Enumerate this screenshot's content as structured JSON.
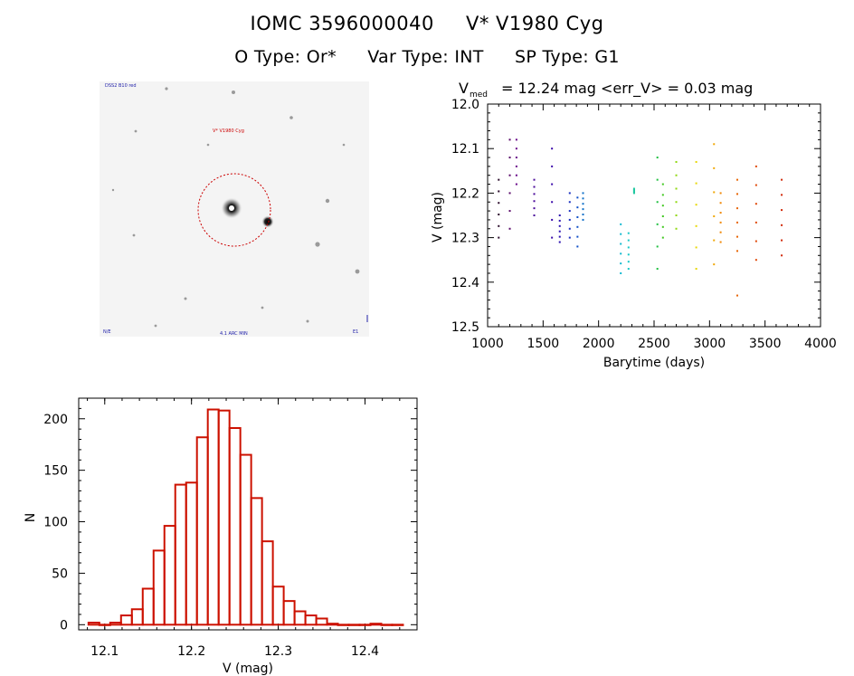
{
  "header": {
    "object_id": "IOMC 3596000040",
    "star_name": "V* V1980 Cyg",
    "o_type": "O Type: Or*",
    "var_type": "Var Type: INT",
    "sp_type": "SP Type: G1"
  },
  "image_panel": {
    "top_left_label": "DSS2 B10 red",
    "target_label": "V* V1980 Cyg",
    "bottom_left_label": "N/E",
    "bottom_center_label": "4.1 ARC MIN",
    "bottom_right_label": "E1"
  },
  "colors": {
    "hist_bar": "#cc1100",
    "circle": "#cc0000",
    "axis": "#000000"
  },
  "chart_data": [
    {
      "id": "light_curve",
      "type": "scatter",
      "title_prefix": "V",
      "title_subscript": "med",
      "title_rest": "= 12.24 mag  <err_V> = 0.03 mag",
      "xlabel": "Barytime (days)",
      "ylabel": "V (mag)",
      "xlim": [
        1000,
        4000
      ],
      "ylim": [
        12.5,
        12.0
      ],
      "xticks": [
        1000,
        1500,
        2000,
        2500,
        3000,
        3500,
        4000
      ],
      "yticks": [
        "12.0",
        "12.1",
        "12.2",
        "12.3",
        "12.4",
        "12.5"
      ],
      "y_inverted": true,
      "points_per_group": 6,
      "groups": [
        {
          "x": 1100,
          "ymin": 12.17,
          "ymax": 12.3,
          "color": "#2a0a2a"
        },
        {
          "x": 1200,
          "ymin": 12.08,
          "ymax": 12.28,
          "color": "#5a0a6a"
        },
        {
          "x": 1260,
          "ymin": 12.08,
          "ymax": 12.18,
          "color": "#6a0a8a"
        },
        {
          "x": 1420,
          "ymin": 12.17,
          "ymax": 12.25,
          "color": "#4a0a9a"
        },
        {
          "x": 1580,
          "ymin": 12.1,
          "ymax": 12.3,
          "color": "#3a0aaa"
        },
        {
          "x": 1650,
          "ymin": 12.25,
          "ymax": 12.31,
          "color": "#2a10b0"
        },
        {
          "x": 1740,
          "ymin": 12.2,
          "ymax": 12.3,
          "color": "#1a30c0"
        },
        {
          "x": 1810,
          "ymin": 12.21,
          "ymax": 12.32,
          "color": "#1050c8"
        },
        {
          "x": 1860,
          "ymin": 12.2,
          "ymax": 12.26,
          "color": "#1070c8"
        },
        {
          "x": 2200,
          "ymin": 12.27,
          "ymax": 12.38,
          "color": "#10b8d0"
        },
        {
          "x": 2270,
          "ymin": 12.29,
          "ymax": 12.37,
          "color": "#18c8c8"
        },
        {
          "x": 2320,
          "ymin": 12.19,
          "ymax": 12.2,
          "color": "#20c8a0"
        },
        {
          "x": 2530,
          "ymin": 12.12,
          "ymax": 12.37,
          "color": "#20c040"
        },
        {
          "x": 2580,
          "ymin": 12.18,
          "ymax": 12.3,
          "color": "#40c820"
        },
        {
          "x": 2700,
          "ymin": 12.13,
          "ymax": 12.28,
          "color": "#90d810"
        },
        {
          "x": 2880,
          "ymin": 12.13,
          "ymax": 12.37,
          "color": "#e8d808"
        },
        {
          "x": 3040,
          "ymin": 12.09,
          "ymax": 12.36,
          "color": "#f0a808"
        },
        {
          "x": 3100,
          "ymin": 12.2,
          "ymax": 12.31,
          "color": "#f08808"
        },
        {
          "x": 3250,
          "ymin": 12.17,
          "ymax": 12.33,
          "color": "#e86808"
        },
        {
          "x": 3420,
          "ymin": 12.14,
          "ymax": 12.35,
          "color": "#e04808"
        },
        {
          "x": 3650,
          "ymin": 12.17,
          "ymax": 12.34,
          "color": "#d02808"
        }
      ],
      "outliers": [
        {
          "x": 3250,
          "y": 12.43,
          "color": "#e86808"
        }
      ]
    },
    {
      "id": "histogram",
      "type": "bar",
      "xlabel": "V (mag)",
      "ylabel": "N",
      "xlim": [
        12.07,
        12.46
      ],
      "ylim": [
        -5,
        220
      ],
      "xticks": [
        "12.1",
        "12.2",
        "12.3",
        "12.4"
      ],
      "yticks": [
        "0",
        "50",
        "100",
        "150",
        "200"
      ],
      "bin_width": 0.0125,
      "bin_starts": [
        12.0813,
        12.0938,
        12.1063,
        12.1188,
        12.1313,
        12.1438,
        12.1563,
        12.1688,
        12.1813,
        12.1938,
        12.2063,
        12.2188,
        12.2313,
        12.2438,
        12.2563,
        12.2688,
        12.2813,
        12.2938,
        12.3063,
        12.3188,
        12.3313,
        12.3438,
        12.3563,
        12.3688,
        12.3813,
        12.3938,
        12.4063,
        12.4188,
        12.4313
      ],
      "values": [
        2,
        0,
        2,
        9,
        15,
        35,
        72,
        96,
        136,
        138,
        182,
        209,
        208,
        191,
        165,
        123,
        81,
        37,
        23,
        13,
        9,
        6,
        1,
        0,
        0,
        0,
        1,
        0,
        0
      ]
    }
  ]
}
